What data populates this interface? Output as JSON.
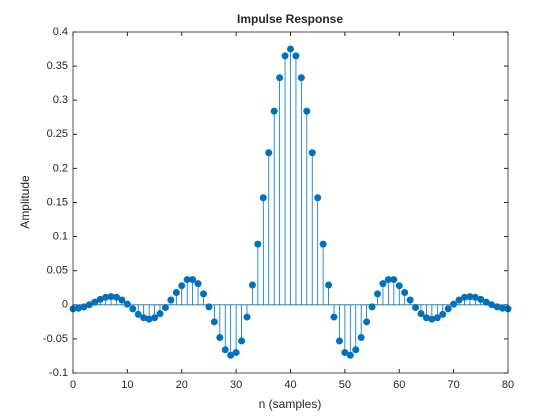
{
  "chart_data": {
    "type": "stem",
    "title": "Impulse Response",
    "xlabel": "n (samples)",
    "ylabel": "Amplitude",
    "x": [
      0,
      1,
      2,
      3,
      4,
      5,
      6,
      7,
      8,
      9,
      10,
      11,
      12,
      13,
      14,
      15,
      16,
      17,
      18,
      19,
      20,
      21,
      22,
      23,
      24,
      25,
      26,
      27,
      28,
      29,
      30,
      31,
      32,
      33,
      34,
      35,
      36,
      37,
      38,
      39,
      40,
      41,
      42,
      43,
      44,
      45,
      46,
      47,
      48,
      49,
      50,
      51,
      52,
      53,
      54,
      55,
      56,
      57,
      58,
      59,
      60,
      61,
      62,
      63,
      64,
      65,
      66,
      67,
      68,
      69,
      70,
      71,
      72,
      73,
      74,
      75,
      76,
      77,
      78,
      79,
      80
    ],
    "values": [
      -0.006,
      -0.005,
      -0.003,
      0.0,
      0.004,
      0.008,
      0.011,
      0.012,
      0.011,
      0.007,
      0.001,
      -0.006,
      -0.014,
      -0.019,
      -0.021,
      -0.019,
      -0.013,
      -0.004,
      0.007,
      0.018,
      0.028,
      0.037,
      0.037,
      0.031,
      0.016,
      -0.003,
      -0.025,
      -0.048,
      -0.066,
      -0.074,
      -0.07,
      -0.053,
      -0.018,
      0.029,
      0.089,
      0.157,
      0.223,
      0.284,
      0.333,
      0.365,
      0.375,
      0.365,
      0.333,
      0.284,
      0.223,
      0.157,
      0.089,
      0.029,
      -0.018,
      -0.053,
      -0.07,
      -0.074,
      -0.066,
      -0.048,
      -0.025,
      -0.003,
      0.016,
      0.031,
      0.037,
      0.037,
      0.028,
      0.018,
      0.007,
      -0.004,
      -0.013,
      -0.019,
      -0.021,
      -0.019,
      -0.014,
      -0.006,
      0.001,
      0.007,
      0.011,
      0.012,
      0.011,
      0.008,
      0.004,
      0.0,
      -0.003,
      -0.005,
      -0.006
    ],
    "color": "#0072bd",
    "xlim": [
      0,
      80
    ],
    "xticks": [
      0,
      10,
      20,
      30,
      40,
      50,
      60,
      70,
      80
    ],
    "ylim": [
      -0.1,
      0.4
    ],
    "yticks": [
      -0.1,
      -0.05,
      0,
      0.05,
      0.1,
      0.15,
      0.2,
      0.25,
      0.3,
      0.35,
      0.4
    ]
  }
}
